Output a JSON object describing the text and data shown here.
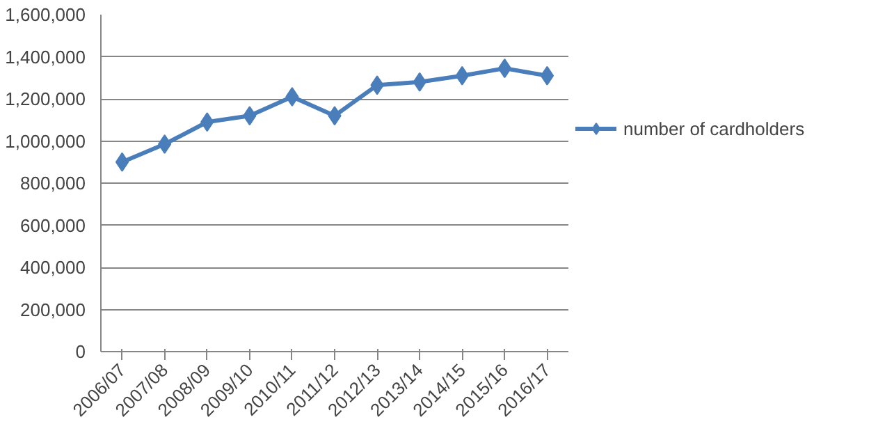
{
  "chart_data": {
    "type": "line",
    "categories": [
      "2006/07",
      "2007/08",
      "2008/09",
      "2009/10",
      "2010/11",
      "2011/12",
      "2012/13",
      "2013/14",
      "2014/15",
      "2015/16",
      "2016/17"
    ],
    "series": [
      {
        "name": "number of cardholders",
        "color": "#4a7ebb",
        "values": [
          900000,
          985000,
          1090000,
          1120000,
          1210000,
          1120000,
          1265000,
          1280000,
          1310000,
          1345000,
          1310000
        ]
      }
    ],
    "ylim": [
      0,
      1600000
    ],
    "yticks": [
      {
        "value": 0,
        "label": "0"
      },
      {
        "value": 200000,
        "label": "200,000"
      },
      {
        "value": 400000,
        "label": "400,000"
      },
      {
        "value": 600000,
        "label": "600,000"
      },
      {
        "value": 800000,
        "label": "800,000"
      },
      {
        "value": 1000000,
        "label": "1,000,000"
      },
      {
        "value": 1200000,
        "label": "1,200,000"
      },
      {
        "value": 1400000,
        "label": "1,400,000"
      },
      {
        "value": 1600000,
        "label": "1,600,000"
      }
    ],
    "grid": "y",
    "legend": "right",
    "marker": "diamond",
    "line_style": "solid"
  }
}
